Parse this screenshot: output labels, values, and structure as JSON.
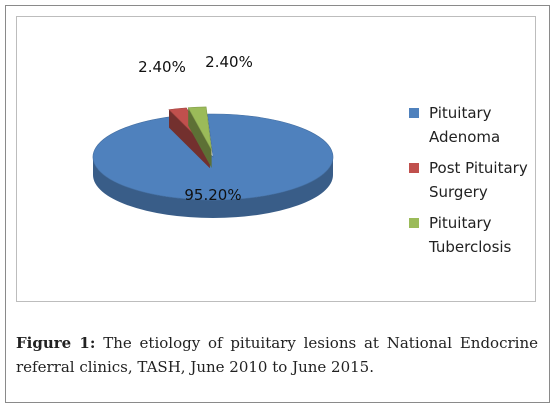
{
  "chart_data": {
    "type": "pie",
    "title": "",
    "slices": [
      {
        "label": "Pituitary Adenoma",
        "value": 95.2,
        "display": "95.20%",
        "color": "#4f81bd"
      },
      {
        "label": "Post Pituitary Surgery",
        "value": 2.4,
        "display": "2.40%",
        "color": "#c0504d"
      },
      {
        "label": "Pituitary Tuberclosis",
        "value": 2.4,
        "display": "2.40%",
        "color": "#9bbb59"
      }
    ],
    "legend_position": "right",
    "style": "3d-exploded"
  },
  "caption": {
    "label": "Figure 1:",
    "text": "The etiology of pituitary lesions at National Endocrine referral clinics, TASH, June 2010 to June 2015."
  }
}
